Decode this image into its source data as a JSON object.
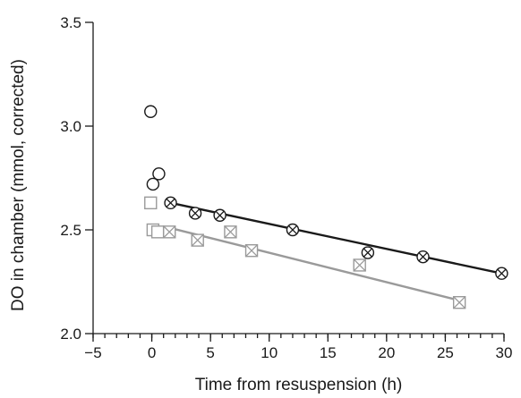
{
  "chart_data": {
    "type": "scatter",
    "title": "",
    "xlabel": "Time from resuspension (h)",
    "ylabel": "DO in chamber (mmol, corrected)",
    "xlim": [
      -5,
      30
    ],
    "ylim": [
      2.0,
      3.5
    ],
    "xticks": [
      -5,
      0,
      5,
      10,
      15,
      20,
      25,
      30
    ],
    "xtick_labels": [
      "−5",
      "0",
      "5",
      "10",
      "15",
      "20",
      "25",
      "30"
    ],
    "yticks": [
      2.0,
      2.5,
      3.0,
      3.5
    ],
    "ytick_labels": [
      "2.0",
      "2.5",
      "3.0",
      "3.5"
    ],
    "x_minor_tick_step": 1,
    "grid": false,
    "legend": "none",
    "series": [
      {
        "marker": "circle",
        "color": "#1a1a1a",
        "points": [
          [
            -0.1,
            3.07
          ],
          [
            0.1,
            2.72
          ],
          [
            0.6,
            2.77
          ]
        ]
      },
      {
        "marker": "circle-x",
        "color": "#1a1a1a",
        "points": [
          [
            1.6,
            2.63
          ],
          [
            3.7,
            2.58
          ],
          [
            5.8,
            2.57
          ],
          [
            12.0,
            2.5
          ],
          [
            18.4,
            2.39
          ],
          [
            23.1,
            2.37
          ],
          [
            29.8,
            2.29
          ]
        ],
        "fit_line": [
          [
            1.6,
            2.63
          ],
          [
            29.8,
            2.29
          ]
        ]
      },
      {
        "marker": "square",
        "color": "#9a9a9a",
        "points": [
          [
            -0.1,
            2.63
          ],
          [
            0.1,
            2.5
          ],
          [
            0.5,
            2.49
          ]
        ]
      },
      {
        "marker": "square-x",
        "color": "#9a9a9a",
        "points": [
          [
            1.5,
            2.49
          ],
          [
            3.9,
            2.45
          ],
          [
            6.7,
            2.49
          ],
          [
            8.5,
            2.4
          ],
          [
            17.7,
            2.33
          ],
          [
            26.2,
            2.15
          ]
        ],
        "fit_line": [
          [
            1.5,
            2.51
          ],
          [
            26.2,
            2.16
          ]
        ]
      }
    ]
  }
}
